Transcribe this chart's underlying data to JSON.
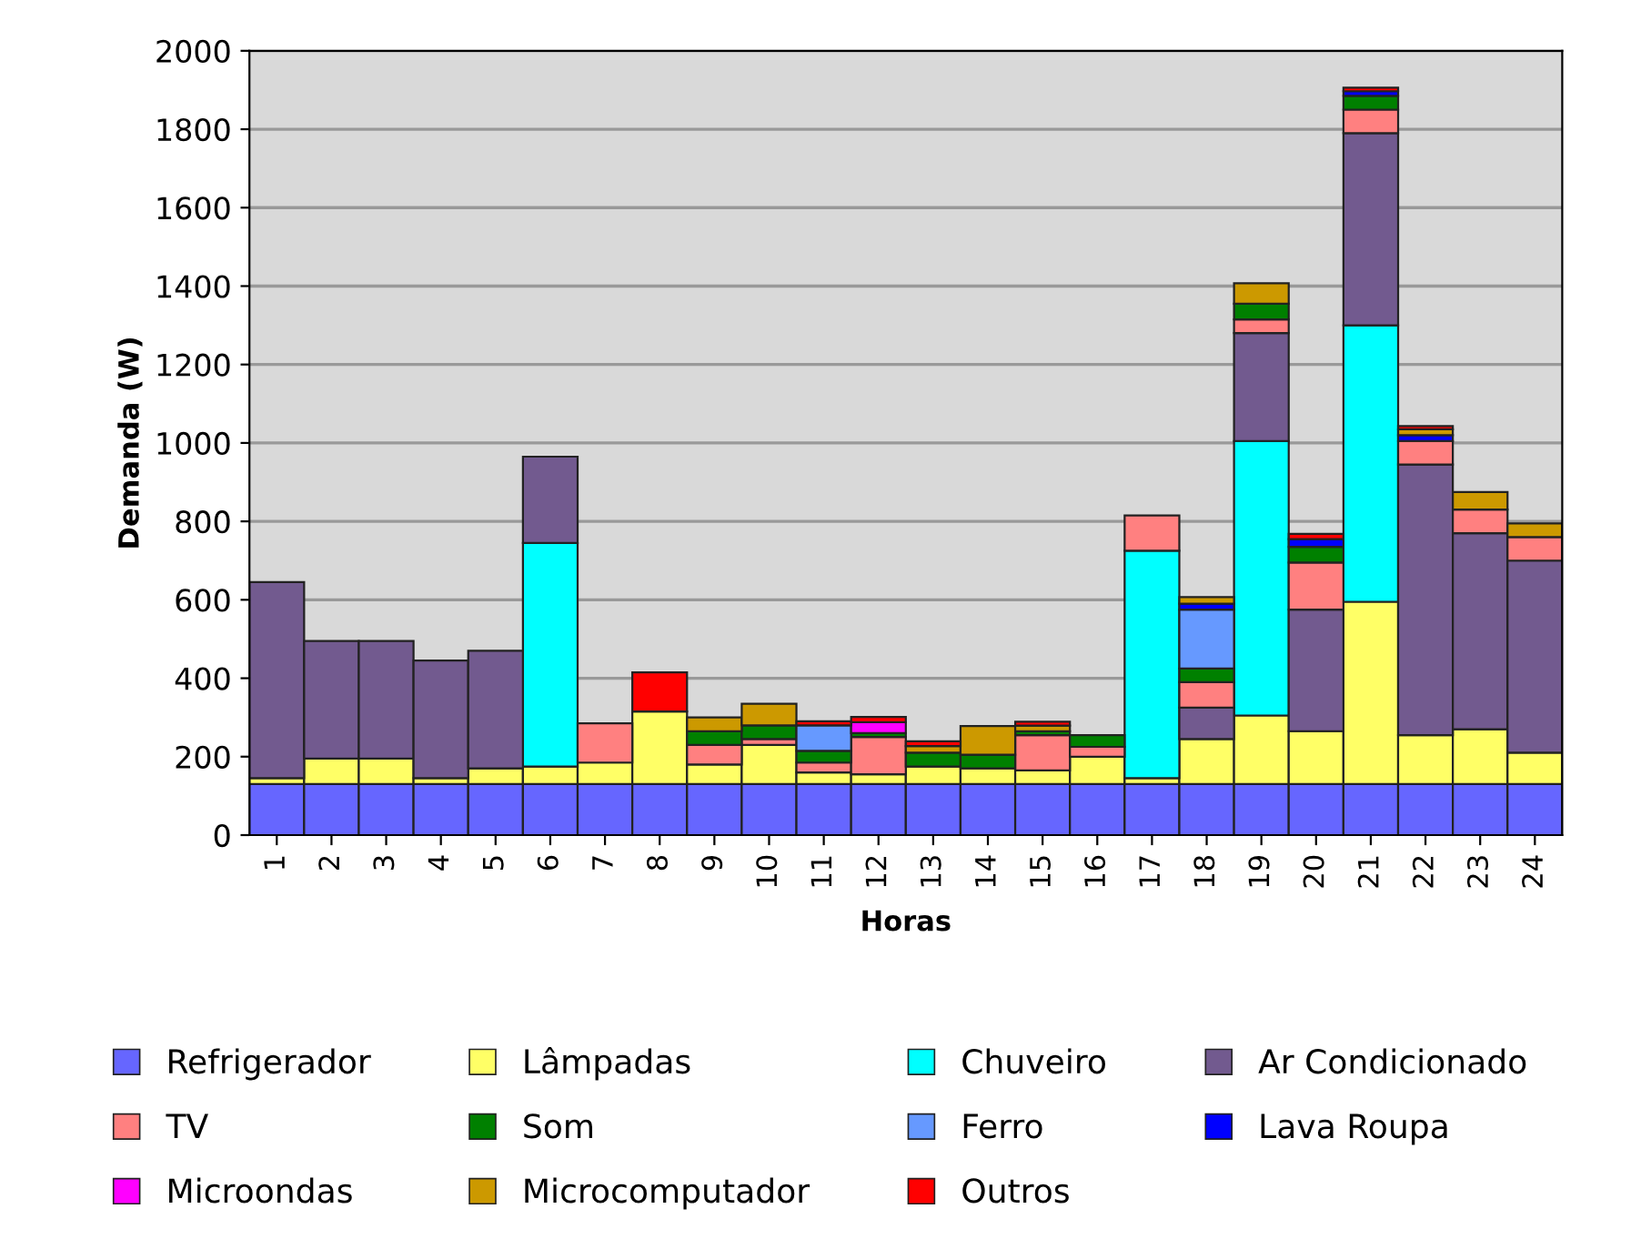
{
  "chart_data": {
    "type": "bar",
    "stacked": true,
    "xlabel": "Horas",
    "ylabel": "Demanda (W)",
    "categories": [
      "1",
      "2",
      "3",
      "4",
      "5",
      "6",
      "7",
      "8",
      "9",
      "10",
      "11",
      "12",
      "13",
      "14",
      "15",
      "16",
      "17",
      "18",
      "19",
      "20",
      "21",
      "22",
      "23",
      "24"
    ],
    "ylim": [
      0,
      2000
    ],
    "yticks": [
      0,
      200,
      400,
      600,
      800,
      1000,
      1200,
      1400,
      1600,
      1800,
      2000
    ],
    "grid": "y",
    "legend": "bottom",
    "series": [
      {
        "name": "Refrigerador",
        "color": "#6666ff",
        "values": [
          130,
          130,
          130,
          130,
          130,
          130,
          130,
          130,
          130,
          130,
          130,
          130,
          130,
          130,
          130,
          130,
          130,
          130,
          130,
          130,
          130,
          130,
          130,
          130
        ]
      },
      {
        "name": "Lâmpadas",
        "color": "#ffff66",
        "values": [
          15,
          65,
          65,
          15,
          40,
          45,
          55,
          185,
          50,
          100,
          30,
          25,
          45,
          40,
          35,
          70,
          15,
          115,
          175,
          135,
          465,
          125,
          140,
          80
        ]
      },
      {
        "name": "Chuveiro",
        "color": "#00ffff",
        "values": [
          null,
          null,
          null,
          null,
          null,
          570,
          null,
          null,
          null,
          null,
          null,
          null,
          null,
          null,
          null,
          null,
          580,
          null,
          700,
          null,
          705,
          null,
          null,
          null
        ]
      },
      {
        "name": "Ar Condicionado",
        "color": "#725a8f",
        "values": [
          500,
          300,
          300,
          300,
          300,
          220,
          null,
          null,
          null,
          null,
          null,
          null,
          null,
          null,
          null,
          null,
          null,
          80,
          275,
          310,
          490,
          690,
          500,
          490
        ]
      },
      {
        "name": "TV",
        "color": "#ff8080",
        "values": [
          null,
          null,
          null,
          null,
          null,
          null,
          100,
          null,
          50,
          15,
          25,
          95,
          null,
          null,
          90,
          25,
          90,
          65,
          35,
          120,
          60,
          60,
          60,
          60
        ]
      },
      {
        "name": "Som",
        "color": "#008000",
        "values": [
          null,
          null,
          null,
          null,
          null,
          null,
          null,
          null,
          35,
          35,
          30,
          10,
          35,
          35,
          10,
          30,
          null,
          35,
          40,
          40,
          35,
          null,
          null,
          null
        ]
      },
      {
        "name": "Ferro",
        "color": "#6699ff",
        "values": [
          null,
          null,
          null,
          null,
          null,
          null,
          null,
          null,
          null,
          null,
          65,
          null,
          null,
          null,
          null,
          null,
          null,
          150,
          null,
          null,
          null,
          null,
          null,
          null
        ]
      },
      {
        "name": "Lava Roupa",
        "color": "#0000ff",
        "values": [
          null,
          null,
          null,
          null,
          null,
          null,
          null,
          null,
          null,
          null,
          null,
          null,
          null,
          null,
          null,
          null,
          null,
          15,
          null,
          20,
          12,
          15,
          null,
          null
        ]
      },
      {
        "name": "Microondas",
        "color": "#ff00ff",
        "values": [
          null,
          null,
          null,
          null,
          null,
          null,
          null,
          null,
          null,
          null,
          null,
          28,
          null,
          null,
          null,
          null,
          null,
          null,
          null,
          null,
          null,
          null,
          null,
          null
        ]
      },
      {
        "name": "Microcomputador",
        "color": "#cc9900",
        "values": [
          null,
          null,
          null,
          null,
          null,
          null,
          null,
          null,
          35,
          55,
          null,
          null,
          17,
          73,
          14,
          null,
          null,
          17,
          52,
          null,
          null,
          15,
          45,
          35
        ]
      },
      {
        "name": "Outros",
        "color": "#ff0000",
        "values": [
          null,
          null,
          null,
          null,
          null,
          null,
          null,
          100,
          null,
          null,
          10,
          13,
          12,
          null,
          10,
          null,
          null,
          null,
          null,
          13,
          9,
          8,
          null,
          null
        ]
      }
    ]
  }
}
